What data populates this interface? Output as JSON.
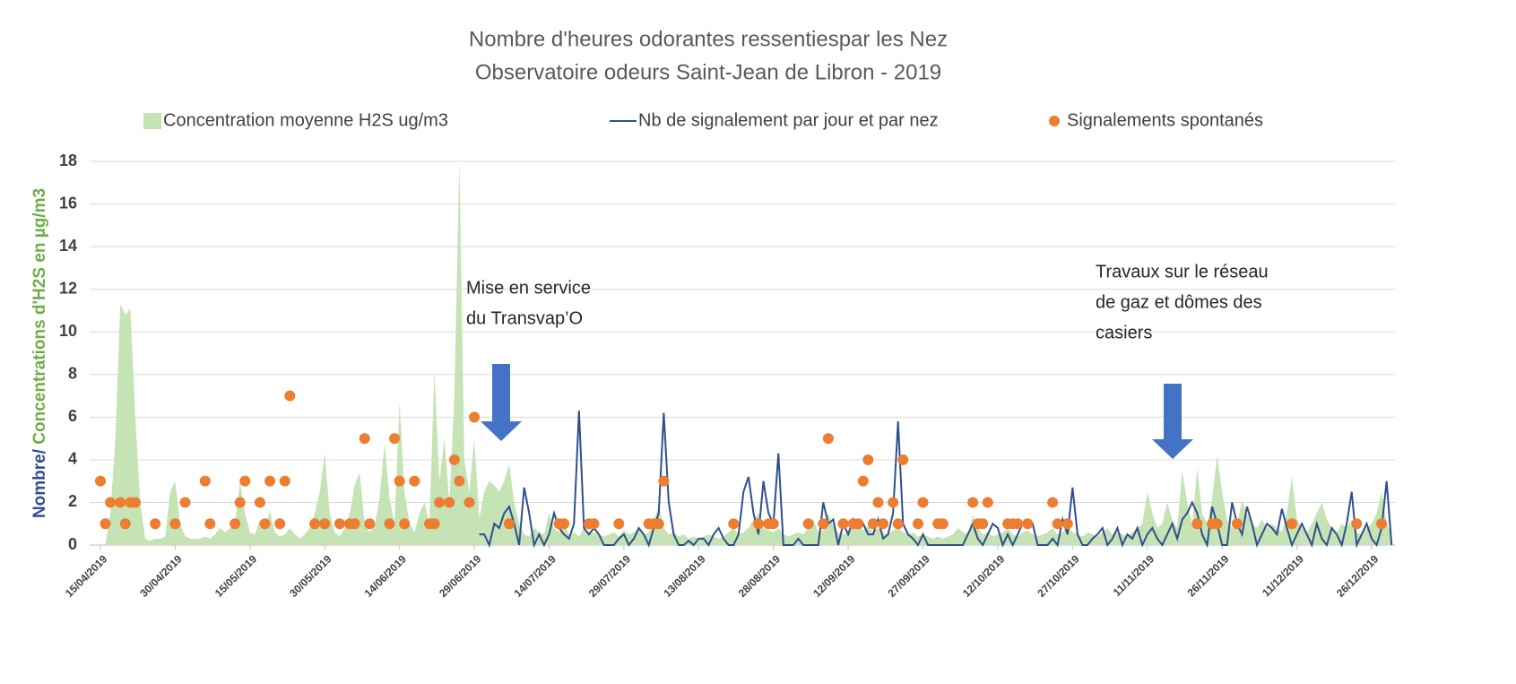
{
  "chart_data": {
    "type": "combo",
    "title": [
      "Nombre d'heures odorantes ressentiespar les Nez",
      "Observatoire odeurs Saint-Jean de Libron - 2019"
    ],
    "ylabel": [
      "Nombre/ ",
      "Concentrations d'H2S en µg/m3"
    ],
    "ylabel_colors": [
      "#2f4f8f",
      "#70ad47"
    ],
    "ylim": [
      0,
      18
    ],
    "yticks": [
      0,
      2,
      4,
      6,
      8,
      10,
      12,
      14,
      16,
      18
    ],
    "grid": true,
    "legend": "top",
    "categories": [
      "15/04/2019",
      null,
      null,
      null,
      null,
      null,
      null,
      null,
      null,
      null,
      null,
      null,
      null,
      null,
      null,
      "30/04/2019",
      null,
      null,
      null,
      null,
      null,
      null,
      null,
      null,
      null,
      null,
      null,
      null,
      null,
      null,
      "15/05/2019",
      null,
      null,
      null,
      null,
      null,
      null,
      null,
      null,
      null,
      null,
      null,
      null,
      null,
      null,
      "30/05/2019",
      null,
      null,
      null,
      null,
      null,
      null,
      null,
      null,
      null,
      null,
      null,
      null,
      null,
      null,
      "14/06/2019",
      null,
      null,
      null,
      null,
      null,
      null,
      null,
      null,
      null,
      null,
      null,
      null,
      null,
      null,
      "29/06/2019",
      null,
      null,
      null,
      null,
      null,
      null,
      null,
      null,
      null,
      null,
      null,
      null,
      null,
      null,
      "14/07/2019",
      null,
      null,
      null,
      null,
      null,
      null,
      null,
      null,
      null,
      null,
      null,
      null,
      null,
      null,
      "29/07/2019",
      null,
      null,
      null,
      null,
      null,
      null,
      null,
      null,
      null,
      null,
      null,
      null,
      null,
      null,
      "13/08/2019",
      null,
      null,
      null,
      null,
      null,
      null,
      null,
      null,
      null,
      null,
      null,
      null,
      null,
      null,
      "28/08/2019",
      null,
      null,
      null,
      null,
      null,
      null,
      null,
      null,
      null,
      null,
      null,
      null,
      null,
      null,
      "12/09/2019",
      null,
      null,
      null,
      null,
      null,
      null,
      null,
      null,
      null,
      null,
      null,
      null,
      null,
      null,
      "27/09/2019",
      null,
      null,
      null,
      null,
      null,
      null,
      null,
      null,
      null,
      null,
      null,
      null,
      null,
      null,
      "12/10/2019",
      null,
      null,
      null,
      null,
      null,
      null,
      null,
      null,
      null,
      null,
      null,
      null,
      null,
      null,
      "27/10/2019",
      null,
      null,
      null,
      null,
      null,
      null,
      null,
      null,
      null,
      null,
      null,
      null,
      null,
      null,
      "11/11/2019",
      null,
      null,
      null,
      null,
      null,
      null,
      null,
      null,
      null,
      null,
      null,
      null,
      null,
      null,
      "26/11/2019",
      null,
      null,
      null,
      null,
      null,
      null,
      null,
      null,
      null,
      null,
      null,
      null,
      null,
      null,
      "11/12/2019",
      null,
      null,
      null,
      null,
      null,
      null,
      null,
      null,
      null,
      null,
      null,
      null,
      null,
      null,
      "26/12/2019",
      null,
      null,
      null,
      null
    ],
    "series": [
      {
        "name": "Concentration moyenne H2S ug/m3",
        "type": "area",
        "color": "#c5e3b4",
        "values": [
          0,
          0,
          1.5,
          5,
          11.3,
          10.8,
          11.1,
          6,
          2,
          0.3,
          0.2,
          0.3,
          0.3,
          0.4,
          2.5,
          3,
          1,
          0.4,
          0.3,
          0.3,
          0.3,
          0.4,
          0.3,
          0.5,
          0.8,
          0.6,
          0.8,
          1,
          3,
          1.5,
          0.6,
          0.5,
          1.2,
          0.8,
          1.6,
          0.6,
          0.4,
          0.5,
          0.8,
          0.5,
          0.3,
          0.5,
          0.8,
          1.5,
          2.5,
          4.3,
          1.5,
          0.6,
          0.4,
          0.8,
          1.5,
          2.8,
          3.4,
          1,
          0.6,
          0.9,
          2.2,
          4.8,
          2.2,
          1,
          6.7,
          2.5,
          1,
          0.6,
          1.5,
          2,
          1,
          8.2,
          3,
          5,
          2,
          7,
          18,
          4,
          2.5,
          5,
          1.2,
          2.5,
          3,
          2.8,
          2.5,
          3,
          3.8,
          2,
          1,
          0.5,
          0.4,
          0.8,
          0.6,
          0.5,
          1.5,
          0.8,
          0.6,
          1,
          0.5,
          0.6,
          0.4,
          0.8,
          0.5,
          0.6,
          0.5,
          0.4,
          0.5,
          0.6,
          0.4,
          0.7,
          0.5,
          0.6,
          0.8,
          0.5,
          0.6,
          1.2,
          1.8,
          0.8,
          0.5,
          0.6,
          0.4,
          0.5,
          0.3,
          0.4,
          0.3,
          0.4,
          0.5,
          0.4,
          0.3,
          0.4,
          0.6,
          0.8,
          0.5,
          0.6,
          0.8,
          1.2,
          1.5,
          0.8,
          0.7,
          0.6,
          0.8,
          0.5,
          0.4,
          0.5,
          0.6,
          0.5,
          0.8,
          1.2,
          0.6,
          0.7,
          1.5,
          0.9,
          0.6,
          0.5,
          0.6,
          0.8,
          1,
          0.7,
          0.9,
          0.6,
          0.8,
          0.6,
          0.5,
          0.7,
          0.8,
          0.6,
          0.5,
          0.6,
          0.4,
          0.5,
          0.4,
          0.3,
          0.4,
          0.3,
          0.4,
          0.5,
          0.8,
          0.6,
          0.5,
          1.4,
          0.8,
          0.5,
          0.6,
          0.4,
          0.5,
          0.6,
          0.8,
          0.5,
          0.4,
          0.6,
          0.7,
          0.5,
          0.4,
          0.5,
          0.6,
          0.8,
          0.5,
          0.6,
          0.9,
          0.6,
          0.5,
          0.4,
          0.6,
          0.5,
          0.4,
          0.6,
          0.8,
          0.5,
          0.6,
          0.5,
          0.4,
          0.6,
          0.8,
          1,
          2.5,
          1.5,
          0.8,
          1,
          2,
          1.2,
          0.8,
          3.5,
          2,
          1,
          3.6,
          1.5,
          1,
          2.2,
          4.2,
          2.5,
          1.2,
          0.8,
          1,
          2.1,
          1.5,
          1,
          0.8,
          1.2,
          0.8,
          1,
          0.8,
          0.6,
          1.5,
          3.2,
          1.2,
          0.8,
          0.6,
          1,
          1.5,
          2,
          1.2,
          0.8,
          0.6,
          1,
          0.8,
          1.2,
          0.6,
          0.5,
          0.8,
          1,
          1.5,
          2.5,
          1,
          0.5
        ]
      },
      {
        "name": "Nb de signalement par jour et par nez",
        "type": "line",
        "color": "#2f4f8f",
        "values": [
          null,
          null,
          null,
          null,
          null,
          null,
          null,
          null,
          null,
          null,
          null,
          null,
          null,
          null,
          null,
          null,
          null,
          null,
          null,
          null,
          null,
          null,
          null,
          null,
          null,
          null,
          null,
          null,
          null,
          null,
          null,
          null,
          null,
          null,
          null,
          null,
          null,
          null,
          null,
          null,
          null,
          null,
          null,
          null,
          null,
          null,
          null,
          null,
          null,
          null,
          null,
          null,
          null,
          null,
          null,
          null,
          null,
          null,
          null,
          null,
          null,
          null,
          null,
          null,
          null,
          null,
          null,
          null,
          null,
          null,
          null,
          null,
          null,
          null,
          null,
          null,
          0.5,
          0.5,
          0,
          1,
          0.8,
          1.5,
          1.8,
          1,
          0,
          2.7,
          1.5,
          0,
          0.5,
          0,
          0.5,
          1.5,
          0.8,
          0.5,
          0.3,
          1,
          6.3,
          0.8,
          0.5,
          0.8,
          0.5,
          0,
          0,
          0,
          0.3,
          0.5,
          0,
          0.3,
          0.8,
          0.5,
          0,
          0.8,
          1.5,
          6.2,
          2,
          0.5,
          0,
          0,
          0.2,
          0,
          0.3,
          0.3,
          0,
          0.5,
          0.8,
          0.3,
          0,
          0,
          0.5,
          2.5,
          3.2,
          1.5,
          0.5,
          3,
          1.5,
          1,
          4.3,
          0,
          0,
          0,
          0.3,
          0,
          0,
          0,
          0,
          2,
          1,
          1.2,
          0,
          1,
          0.5,
          1.2,
          0.8,
          1,
          0.5,
          0.5,
          1.2,
          0.3,
          0.5,
          1.5,
          5.8,
          1,
          0.5,
          0.3,
          0,
          0.5,
          0,
          0,
          0,
          0,
          0,
          0,
          0,
          0,
          0.5,
          1,
          0.3,
          0,
          0.5,
          1,
          0.8,
          0,
          0.5,
          0,
          0.5,
          1,
          0.8,
          1,
          0,
          0,
          0,
          0.3,
          0,
          1.2,
          0.5,
          2.7,
          0.5,
          0,
          0,
          0.3,
          0.5,
          0.8,
          0,
          0.3,
          0.8,
          0,
          0.5,
          0.3,
          0.8,
          0,
          0.5,
          0.8,
          0.3,
          0,
          0.5,
          1,
          0.3,
          1.2,
          1.5,
          2,
          1.5,
          0.5,
          0,
          1.8,
          1,
          0,
          0,
          2,
          1,
          0.5,
          1.8,
          1,
          0,
          0.5,
          1,
          0.8,
          0.5,
          1.7,
          0.8,
          0,
          0.5,
          1,
          0.5,
          0,
          1,
          0.3,
          0,
          0.8,
          0.5,
          0,
          1,
          2.5,
          0,
          0.5,
          1,
          0.3,
          0,
          0.8,
          3,
          0
        ]
      },
      {
        "name": "Signalements spontanés",
        "type": "scatter",
        "color": "#ed7d31",
        "values": [
          3,
          1,
          2,
          null,
          2,
          1,
          2,
          2,
          null,
          null,
          null,
          1,
          null,
          null,
          null,
          1,
          null,
          2,
          null,
          null,
          null,
          3,
          1,
          null,
          null,
          null,
          null,
          1,
          2,
          3,
          null,
          null,
          2,
          1,
          3,
          null,
          1,
          3,
          7,
          null,
          null,
          null,
          null,
          1,
          null,
          1,
          null,
          null,
          1,
          null,
          1,
          1,
          null,
          5,
          1,
          null,
          null,
          null,
          1,
          5,
          3,
          1,
          null,
          3,
          null,
          null,
          1,
          1,
          2,
          null,
          2,
          4,
          3,
          null,
          2,
          6,
          null,
          null,
          null,
          null,
          null,
          null,
          1,
          null,
          null,
          null,
          null,
          null,
          null,
          null,
          null,
          null,
          1,
          1,
          null,
          null,
          null,
          null,
          1,
          1,
          null,
          null,
          null,
          null,
          1,
          null,
          null,
          null,
          null,
          null,
          1,
          1,
          1,
          3,
          null,
          null,
          null,
          null,
          null,
          null,
          null,
          null,
          null,
          null,
          null,
          null,
          null,
          1,
          null,
          null,
          null,
          null,
          1,
          null,
          1,
          1,
          null,
          null,
          null,
          null,
          null,
          null,
          1,
          null,
          null,
          1,
          5,
          null,
          null,
          1,
          null,
          1,
          1,
          3,
          4,
          1,
          2,
          1,
          null,
          2,
          1,
          4,
          null,
          null,
          1,
          2,
          null,
          null,
          1,
          1,
          null,
          null,
          null,
          null,
          null,
          2,
          1,
          1,
          2,
          null,
          null,
          null,
          1,
          1,
          1,
          null,
          1,
          null,
          null,
          null,
          null,
          2,
          1,
          null,
          1,
          null,
          null,
          null,
          null,
          null,
          null,
          null,
          null,
          null,
          null,
          null,
          null,
          null,
          null,
          null,
          null,
          null,
          null,
          null,
          null,
          null,
          null,
          null,
          null,
          null,
          1,
          null,
          null,
          1,
          1,
          null,
          null,
          null,
          1,
          null,
          null,
          null,
          null,
          null,
          null,
          null,
          null,
          null,
          null,
          1,
          null,
          null,
          null,
          null,
          null,
          null,
          null,
          null,
          null,
          null,
          null,
          null,
          1,
          null,
          null,
          null,
          null,
          1,
          null,
          null
        ]
      }
    ],
    "annotations": [
      {
        "lines": [
          "Mise en service",
          "du Transvap’O"
        ]
      },
      {
        "lines": [
          "Travaux sur le réseau",
          "de gaz et dômes des",
          "casiers"
        ]
      }
    ]
  }
}
